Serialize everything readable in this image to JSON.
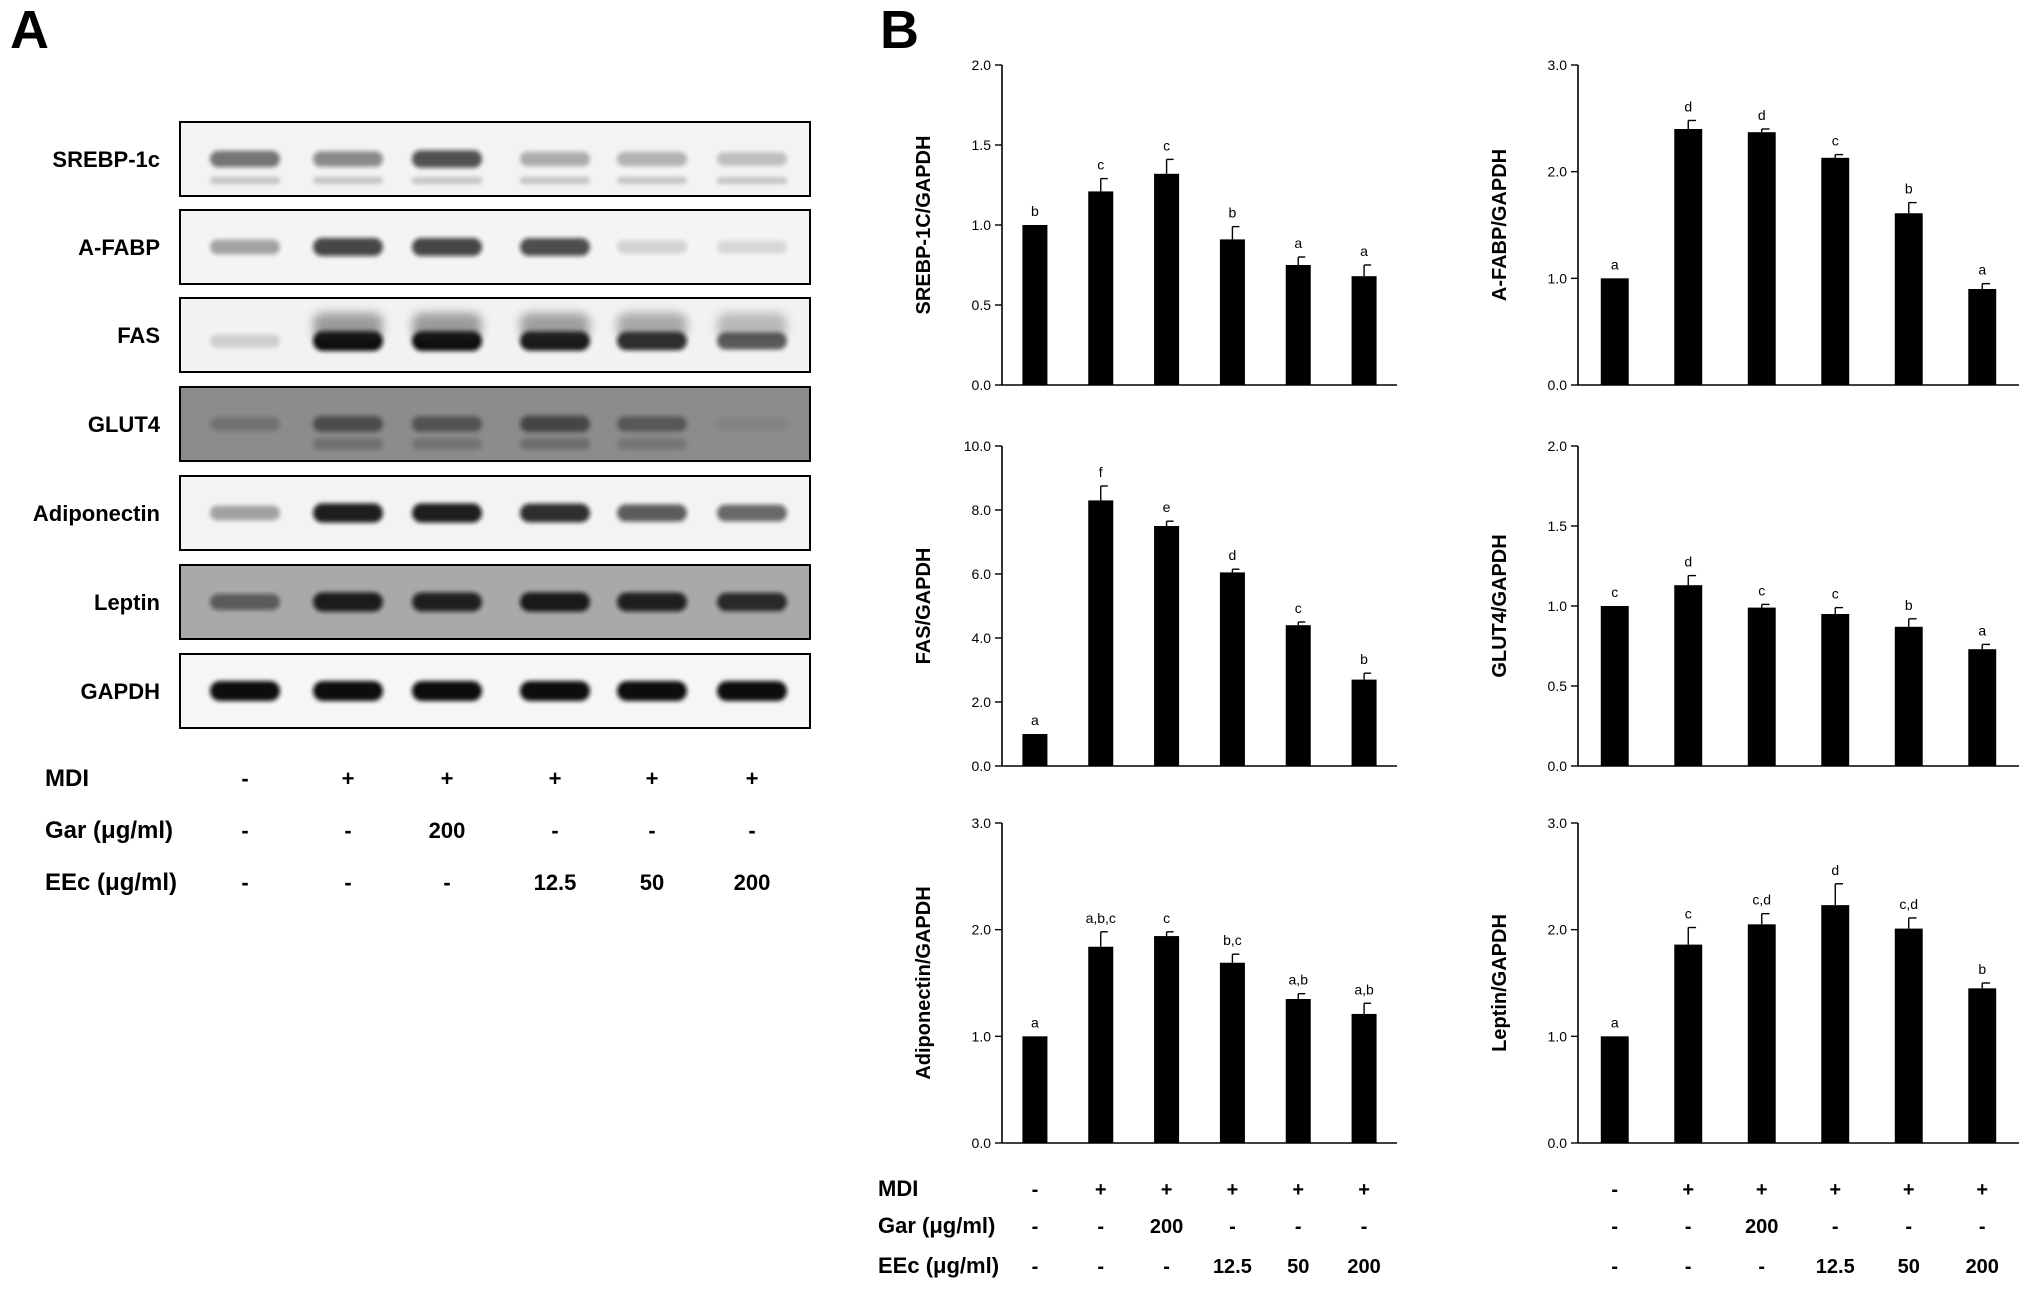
{
  "panel_a": {
    "letter": "A",
    "blots": [
      "SREBP-1c",
      "A-FABP",
      "FAS",
      "GLUT4",
      "Adiponectin",
      "Leptin",
      "GAPDH"
    ],
    "conditions": [
      {
        "label": "MDI",
        "values": [
          "-",
          "+",
          "+",
          "+",
          "+",
          "+"
        ]
      },
      {
        "label": "Gar (μg/ml)",
        "values": [
          "-",
          "-",
          "200",
          "-",
          "-",
          "-"
        ]
      },
      {
        "label": "EEc (μg/ml)",
        "values": [
          "-",
          "-",
          "-",
          "12.5",
          "50",
          "200"
        ]
      }
    ]
  },
  "panel_b": {
    "letter": "B",
    "conditions": [
      {
        "label": "MDI",
        "values": [
          "-",
          "+",
          "+",
          "+",
          "+",
          "+"
        ]
      },
      {
        "label": "Gar (μg/ml)",
        "values": [
          "-",
          "-",
          "200",
          "-",
          "-",
          "-"
        ]
      },
      {
        "label": "EEc (μg/ml)",
        "values": [
          "-",
          "-",
          "-",
          "12.5",
          "50",
          "200"
        ]
      }
    ]
  },
  "chart_data": [
    {
      "type": "bar",
      "ylabel": "SREBP-1C/GAPDH",
      "ylim": [
        0,
        2.0
      ],
      "yticks": [
        "0.0",
        "0.5",
        "1.0",
        "1.5",
        "2.0"
      ],
      "values": [
        1.0,
        1.21,
        1.32,
        0.91,
        0.75,
        0.68
      ],
      "errors": [
        0.0,
        0.08,
        0.09,
        0.08,
        0.05,
        0.07
      ],
      "labels": [
        "b",
        "c",
        "c",
        "b",
        "a",
        "a"
      ]
    },
    {
      "type": "bar",
      "ylabel": "A-FABP/GAPDH",
      "ylim": [
        0,
        3.0
      ],
      "yticks": [
        "0.0",
        "1.0",
        "2.0",
        "3.0"
      ],
      "values": [
        1.0,
        2.4,
        2.37,
        2.13,
        1.61,
        0.9
      ],
      "errors": [
        0.0,
        0.08,
        0.03,
        0.03,
        0.1,
        0.05
      ],
      "labels": [
        "a",
        "d",
        "d",
        "c",
        "b",
        "a"
      ]
    },
    {
      "type": "bar",
      "ylabel": "FAS/GAPDH",
      "ylim": [
        0,
        10.0
      ],
      "yticks": [
        "0.0",
        "2.0",
        "4.0",
        "6.0",
        "8.0",
        "10.0"
      ],
      "values": [
        1.0,
        8.3,
        7.5,
        6.05,
        4.4,
        2.7
      ],
      "errors": [
        0.0,
        0.45,
        0.15,
        0.1,
        0.1,
        0.2
      ],
      "labels": [
        "a",
        "f",
        "e",
        "d",
        "c",
        "b"
      ]
    },
    {
      "type": "bar",
      "ylabel": "GLUT4/GAPDH",
      "ylim": [
        0,
        2.0
      ],
      "yticks": [
        "0.0",
        "0.5",
        "1.0",
        "1.5",
        "2.0"
      ],
      "values": [
        1.0,
        1.13,
        0.99,
        0.95,
        0.87,
        0.73
      ],
      "errors": [
        0.0,
        0.06,
        0.02,
        0.04,
        0.05,
        0.03
      ],
      "labels": [
        "c",
        "d",
        "c",
        "c",
        "b",
        "a"
      ]
    },
    {
      "type": "bar",
      "ylabel": "Adiponectin/GAPDH",
      "ylim": [
        0,
        3.0
      ],
      "yticks": [
        "0.0",
        "1.0",
        "2.0",
        "3.0"
      ],
      "values": [
        1.0,
        1.84,
        1.94,
        1.69,
        1.35,
        1.21
      ],
      "errors": [
        0.0,
        0.14,
        0.04,
        0.08,
        0.05,
        0.1
      ],
      "labels": [
        "a",
        "a,b,c",
        "c",
        "b,c",
        "a,b",
        "a,b"
      ]
    },
    {
      "type": "bar",
      "ylabel": "Leptin/GAPDH",
      "ylim": [
        0,
        3.0
      ],
      "yticks": [
        "0.0",
        "1.0",
        "2.0",
        "3.0"
      ],
      "values": [
        1.0,
        1.86,
        2.05,
        2.23,
        2.01,
        1.45
      ],
      "errors": [
        0.0,
        0.16,
        0.1,
        0.2,
        0.1,
        0.05
      ],
      "labels": [
        "a",
        "c",
        "c,d",
        "d",
        "c,d",
        "b"
      ]
    }
  ]
}
